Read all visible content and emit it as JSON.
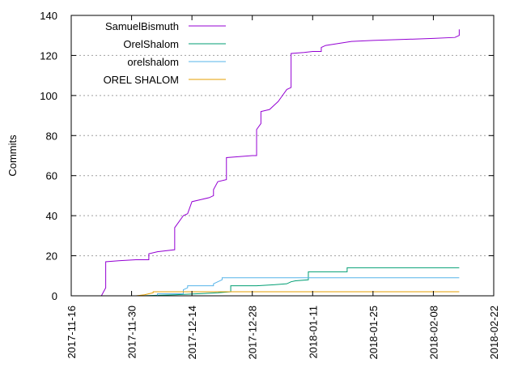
{
  "chart_data": {
    "type": "line",
    "title": "",
    "xlabel": "",
    "ylabel": "Commits",
    "x_type": "date",
    "xlim": [
      "2017-11-16",
      "2018-02-22"
    ],
    "ylim": [
      0,
      140
    ],
    "x_ticks": [
      "2017-11-16",
      "2017-11-30",
      "2017-12-14",
      "2017-12-28",
      "2018-01-11",
      "2018-01-25",
      "2018-02-08",
      "2018-02-22"
    ],
    "y_ticks": [
      0,
      20,
      40,
      60,
      80,
      100,
      120,
      140
    ],
    "grid": true,
    "legend_position": "top-left",
    "series": [
      {
        "name": "SamuelBismuth",
        "color": "#9400d3",
        "points": [
          [
            "2017-11-23",
            0
          ],
          [
            "2017-11-24",
            4
          ],
          [
            "2017-11-24",
            17
          ],
          [
            "2017-11-27",
            17.5
          ],
          [
            "2017-12-01",
            18
          ],
          [
            "2017-12-04",
            18
          ],
          [
            "2017-12-04",
            21
          ],
          [
            "2017-12-06",
            22
          ],
          [
            "2017-12-10",
            23
          ],
          [
            "2017-12-10",
            34
          ],
          [
            "2017-12-11",
            37
          ],
          [
            "2017-12-12",
            40
          ],
          [
            "2017-12-13",
            41
          ],
          [
            "2017-12-14",
            47
          ],
          [
            "2017-12-16",
            48
          ],
          [
            "2017-12-18",
            49
          ],
          [
            "2017-12-19",
            50
          ],
          [
            "2017-12-19",
            53
          ],
          [
            "2017-12-20",
            57
          ],
          [
            "2017-12-22",
            58
          ],
          [
            "2017-12-22",
            69
          ],
          [
            "2017-12-25",
            69.5
          ],
          [
            "2017-12-28",
            70
          ],
          [
            "2017-12-29",
            70
          ],
          [
            "2017-12-29",
            83
          ],
          [
            "2017-12-30",
            86
          ],
          [
            "2017-12-30",
            92
          ],
          [
            "2018-01-01",
            93
          ],
          [
            "2018-01-03",
            97
          ],
          [
            "2018-01-04",
            100
          ],
          [
            "2018-01-05",
            103
          ],
          [
            "2018-01-06",
            104
          ],
          [
            "2018-01-06",
            121
          ],
          [
            "2018-01-09",
            121.5
          ],
          [
            "2018-01-11",
            122
          ],
          [
            "2018-01-13",
            122
          ],
          [
            "2018-01-13",
            124
          ],
          [
            "2018-01-14",
            125
          ],
          [
            "2018-01-17",
            126
          ],
          [
            "2018-01-20",
            127
          ],
          [
            "2018-01-25",
            127.5
          ],
          [
            "2018-02-01",
            128
          ],
          [
            "2018-02-08",
            128.5
          ],
          [
            "2018-02-13",
            129
          ],
          [
            "2018-02-14",
            130
          ],
          [
            "2018-02-14",
            133
          ]
        ]
      },
      {
        "name": "OrelShalom",
        "color": "#009e73",
        "points": [
          [
            "2017-12-02",
            0
          ],
          [
            "2017-12-10",
            0.5
          ],
          [
            "2017-12-20",
            1.5
          ],
          [
            "2017-12-23",
            2
          ],
          [
            "2017-12-23",
            5
          ],
          [
            "2017-12-29",
            5
          ],
          [
            "2018-01-02",
            5.5
          ],
          [
            "2018-01-05",
            6
          ],
          [
            "2018-01-06",
            7
          ],
          [
            "2018-01-07",
            7.5
          ],
          [
            "2018-01-10",
            8
          ],
          [
            "2018-01-10",
            12
          ],
          [
            "2018-01-19",
            12
          ],
          [
            "2018-01-19",
            14
          ],
          [
            "2018-02-14",
            14
          ]
        ]
      },
      {
        "name": "orelshalom",
        "color": "#56b4e9",
        "points": [
          [
            "2017-12-06",
            0
          ],
          [
            "2017-12-06",
            1
          ],
          [
            "2017-12-12",
            1
          ],
          [
            "2017-12-12",
            3
          ],
          [
            "2017-12-13",
            4
          ],
          [
            "2017-12-13",
            5
          ],
          [
            "2017-12-19",
            5
          ],
          [
            "2017-12-19",
            6
          ],
          [
            "2017-12-20",
            7
          ],
          [
            "2017-12-21",
            8
          ],
          [
            "2017-12-21",
            9
          ],
          [
            "2018-01-05",
            9
          ],
          [
            "2018-02-14",
            9
          ]
        ]
      },
      {
        "name": "OREL SHALOM",
        "color": "#e69f00",
        "points": [
          [
            "2017-12-01",
            0
          ],
          [
            "2017-12-03",
            0.5
          ],
          [
            "2017-12-04",
            1
          ],
          [
            "2017-12-05",
            1.5
          ],
          [
            "2017-12-05",
            2
          ],
          [
            "2018-02-14",
            2
          ]
        ]
      }
    ]
  }
}
